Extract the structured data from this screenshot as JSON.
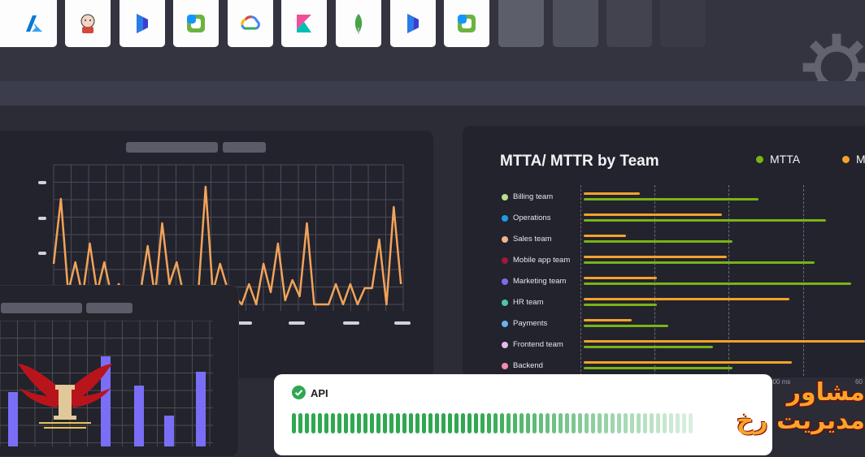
{
  "toolbar": {
    "apps": [
      {
        "icon": "azure-icon",
        "color": "#0a78d4"
      },
      {
        "icon": "jenkins-icon",
        "color": "#d24939"
      },
      {
        "icon": "dynamics-icon",
        "color": "#3a3fd0"
      },
      {
        "icon": "dynatrace-icon",
        "color": "#6cb33f"
      },
      {
        "icon": "google-cloud-icon",
        "color": "#4285f4"
      },
      {
        "icon": "kibana-icon",
        "color": "#e8478b"
      },
      {
        "icon": "mongodb-icon",
        "color": "#47a248"
      },
      {
        "icon": "dynamics-icon",
        "color": "#3a3fd0"
      },
      {
        "icon": "dynatrace-icon",
        "color": "#6cb33f"
      }
    ]
  },
  "mtta": {
    "title": "MTTA/ MTTR by Team",
    "legend": [
      {
        "label": "MTTA",
        "color": "#7ab317"
      },
      {
        "label": "M",
        "color": "#f5a22a"
      }
    ],
    "teams": [
      {
        "name": "Billing team",
        "color": "#b7e08a",
        "mttr": 0.2,
        "mtta": 0.62
      },
      {
        "name": "Operations",
        "color": "#1e9be8",
        "mttr": 0.49,
        "mtta": 0.86
      },
      {
        "name": "Sales team",
        "color": "#f5b38a",
        "mttr": 0.15,
        "mtta": 0.53
      },
      {
        "name": "Mobile app team",
        "color": "#a21837",
        "mttr": 0.51,
        "mtta": 0.82
      },
      {
        "name": "Marketing team",
        "color": "#7c6cf2",
        "mttr": 0.26,
        "mtta": 0.95
      },
      {
        "name": "HR team",
        "color": "#4cc7a5",
        "mttr": 0.73,
        "mtta": 0.26
      },
      {
        "name": "Payments",
        "color": "#6ab2ef",
        "mttr": 0.17,
        "mtta": 0.3
      },
      {
        "name": "Frontend team",
        "color": "#e5b8ef",
        "mttr": 1.0,
        "mtta": 0.46
      },
      {
        "name": "Backend",
        "color": "#f28bb0",
        "mttr": 0.74,
        "mtta": 0.53
      }
    ],
    "axis": [
      "300 ms",
      "60"
    ]
  },
  "api": {
    "label": "API",
    "ok_color": "#2fa84f"
  },
  "watermark": {
    "text": "مشاور مدیریت رخ"
  }
}
